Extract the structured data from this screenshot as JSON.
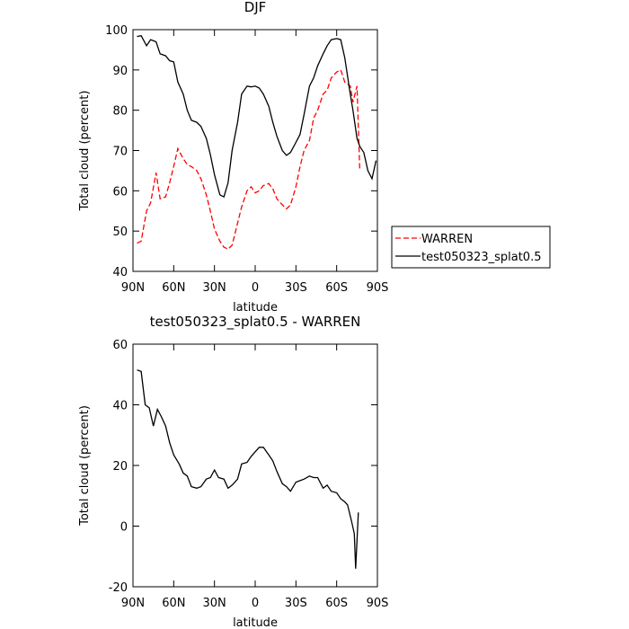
{
  "chart_data": [
    {
      "type": "line",
      "title": "DJF",
      "xlabel": "latitude",
      "ylabel": "Total cloud (percent)",
      "xlim": [
        90,
        -90
      ],
      "ylim": [
        40,
        100
      ],
      "xticks": [
        {
          "value": 90,
          "label": "90N"
        },
        {
          "value": 60,
          "label": "60N"
        },
        {
          "value": 30,
          "label": "30N"
        },
        0,
        {
          "value": -30,
          "label": "30S"
        },
        {
          "value": -60,
          "label": "60S"
        },
        {
          "value": -90,
          "label": "90S"
        }
      ],
      "yticks": [
        40,
        50,
        60,
        70,
        80,
        90,
        100
      ],
      "legend": "right",
      "x": [
        87,
        84,
        80,
        77,
        73,
        70,
        66,
        63,
        60,
        57,
        53,
        50,
        47,
        43,
        40,
        36,
        33,
        30,
        26,
        23,
        20,
        17,
        13,
        10,
        6,
        3,
        0,
        -3,
        -6,
        -10,
        -13,
        -16,
        -20,
        -23,
        -26,
        -30,
        -33,
        -36,
        -40,
        -43,
        -46,
        -50,
        -53,
        -56,
        -60,
        -63,
        -66,
        -70,
        -72,
        -75,
        -77,
        -80,
        -83,
        -86,
        -89
      ],
      "series": [
        {
          "name": "WARREN",
          "color": "#ff0000",
          "dashed": true,
          "values": [
            47,
            47.5,
            55,
            57,
            64.5,
            58,
            58.5,
            62,
            66,
            70.5,
            68,
            66.5,
            66,
            65,
            63,
            59,
            55,
            50.5,
            47.5,
            46,
            45.5,
            46.5,
            52,
            56,
            60,
            61,
            59.5,
            60,
            61.3,
            61.8,
            60.5,
            58,
            56.5,
            55.5,
            56.5,
            61,
            66,
            70,
            72.5,
            78,
            80,
            84,
            85,
            88,
            89.5,
            90,
            87,
            86,
            82,
            86,
            65,
            null,
            null,
            null,
            null
          ]
        },
        {
          "name": "test050323_splat0.5",
          "color": "#000000",
          "dashed": false,
          "values": [
            98.3,
            98.5,
            96,
            97.5,
            97,
            94,
            93.5,
            92.3,
            92,
            87,
            84,
            80,
            77.5,
            77,
            76,
            73,
            69,
            64,
            59,
            58.5,
            62,
            70,
            77,
            84,
            86,
            85.8,
            86,
            85.5,
            84,
            81,
            77,
            73.5,
            70,
            68.8,
            69.5,
            72,
            74,
            79,
            86,
            88,
            91,
            94,
            96,
            97.5,
            97.8,
            97.5,
            93,
            84,
            80,
            73,
            71,
            69.5,
            65,
            63,
            67.5
          ]
        }
      ]
    },
    {
      "type": "line",
      "title": "test050323_splat0.5 - WARREN",
      "xlabel": "latitude",
      "ylabel": "Total cloud (percent)",
      "xlim": [
        90,
        -90
      ],
      "ylim": [
        -20,
        60
      ],
      "xticks": [
        {
          "value": 90,
          "label": "90N"
        },
        {
          "value": 60,
          "label": "60N"
        },
        {
          "value": 30,
          "label": "30N"
        },
        0,
        {
          "value": -30,
          "label": "30S"
        },
        {
          "value": -60,
          "label": "60S"
        },
        {
          "value": -90,
          "label": "90S"
        }
      ],
      "yticks": [
        -20,
        0,
        20,
        40,
        60
      ],
      "x": [
        87,
        84,
        81,
        78,
        75,
        72,
        69,
        66,
        63,
        60,
        56,
        53,
        50,
        47,
        43,
        40,
        36,
        33,
        30,
        27,
        23,
        20,
        17,
        13,
        10,
        6,
        3,
        0,
        -3,
        -6,
        -10,
        -13,
        -16,
        -20,
        -23,
        -26,
        -30,
        -33,
        -36,
        -40,
        -43,
        -46,
        -50,
        -53,
        -56,
        -60,
        -63,
        -66,
        -68,
        -71,
        -73,
        -74,
        -76
      ],
      "color": "#000000",
      "values": [
        51.5,
        51,
        40,
        39,
        33,
        38.5,
        36,
        33,
        27.5,
        23.5,
        20.5,
        17.5,
        16.5,
        13,
        12.5,
        13,
        15.5,
        16,
        18.5,
        16,
        15.5,
        12.5,
        13.5,
        15.5,
        20.5,
        21,
        23,
        24.5,
        26,
        26,
        23.5,
        21.5,
        18,
        14,
        13,
        11.5,
        14.5,
        15,
        15.5,
        16.5,
        16,
        16,
        12.5,
        13.5,
        11.5,
        11,
        9,
        8,
        7,
        1.5,
        -2.5,
        -14,
        4.5
      ]
    }
  ]
}
